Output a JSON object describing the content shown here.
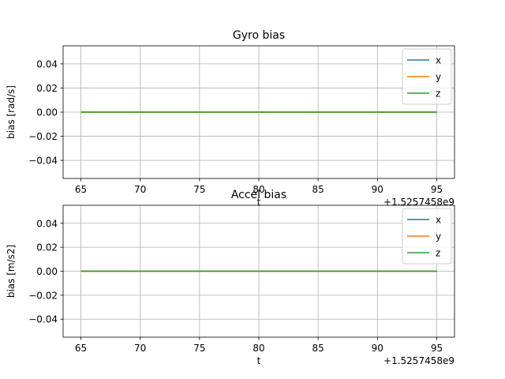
{
  "chart_data": [
    {
      "type": "line",
      "title": "Gyro bias",
      "xlabel": "t",
      "ylabel": "bias [rad/s]",
      "x_offset_label": "+1.5257458e9",
      "xlim": [
        63.5,
        96.5
      ],
      "ylim": [
        -0.055,
        0.055
      ],
      "xticks": [
        65,
        70,
        75,
        80,
        85,
        90,
        95
      ],
      "yticks": [
        -0.04,
        -0.02,
        0.0,
        0.02,
        0.04
      ],
      "ytick_labels": [
        "−0.04",
        "−0.02",
        "0.00",
        "0.02",
        "0.04"
      ],
      "grid": true,
      "legend_position": "top-right",
      "series": [
        {
          "name": "x",
          "color": "#1f77b4",
          "x": [
            65,
            95
          ],
          "y": [
            0.0,
            0.0
          ]
        },
        {
          "name": "y",
          "color": "#ff7f0e",
          "x": [
            65,
            95
          ],
          "y": [
            0.0,
            0.0
          ]
        },
        {
          "name": "z",
          "color": "#2ca02c",
          "x": [
            65,
            95
          ],
          "y": [
            0.0,
            0.0
          ]
        }
      ]
    },
    {
      "type": "line",
      "title": "Accel bias",
      "xlabel": "t",
      "ylabel": "bias [m/s2]",
      "x_offset_label": "+1.5257458e9",
      "xlim": [
        63.5,
        96.5
      ],
      "ylim": [
        -0.055,
        0.055
      ],
      "xticks": [
        65,
        70,
        75,
        80,
        85,
        90,
        95
      ],
      "yticks": [
        -0.04,
        -0.02,
        0.0,
        0.02,
        0.04
      ],
      "ytick_labels": [
        "−0.04",
        "−0.02",
        "0.00",
        "0.02",
        "0.04"
      ],
      "grid": true,
      "legend_position": "top-right",
      "series": [
        {
          "name": "x",
          "color": "#1f77b4",
          "x": [
            65,
            95
          ],
          "y": [
            0.0,
            0.0
          ]
        },
        {
          "name": "y",
          "color": "#ff7f0e",
          "x": [
            65,
            95
          ],
          "y": [
            0.0,
            0.0
          ]
        },
        {
          "name": "z",
          "color": "#2ca02c",
          "x": [
            65,
            95
          ],
          "y": [
            0.0,
            0.0
          ]
        }
      ]
    }
  ]
}
